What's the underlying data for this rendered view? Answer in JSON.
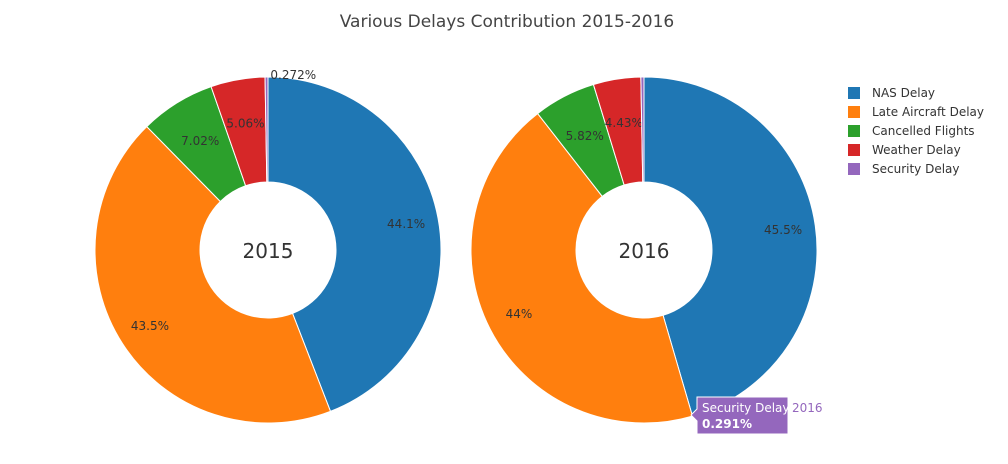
{
  "chart_data": {
    "type": "pie",
    "title": "Various Delays Contribution 2015-2016",
    "categories": [
      "NAS Delay",
      "Late Aircraft Delay",
      "Cancelled Flights",
      "Weather Delay",
      "Security Delay"
    ],
    "colors": [
      "#1f77b4",
      "#ff7f0e",
      "#2ca02c",
      "#d62728",
      "#9467bd"
    ],
    "legend_position": "top-right",
    "hole": true,
    "series": [
      {
        "name": "2015",
        "center_label": "2015",
        "values": [
          44.1,
          43.5,
          7.02,
          5.06,
          0.272
        ],
        "labels": [
          "44.1%",
          "43.5%",
          "7.02%",
          "5.06%",
          "0.272%"
        ]
      },
      {
        "name": "2016",
        "center_label": "2016",
        "values": [
          45.5,
          44.0,
          5.82,
          4.43,
          0.291
        ],
        "labels": [
          "45.5%",
          "44%",
          "5.82%",
          "4.43%",
          "0.291%"
        ]
      }
    ],
    "hover": {
      "series": "2016",
      "category": "Security Delay",
      "label": "Security Delay",
      "value_text": "0.291%",
      "name_text": "2016"
    }
  }
}
